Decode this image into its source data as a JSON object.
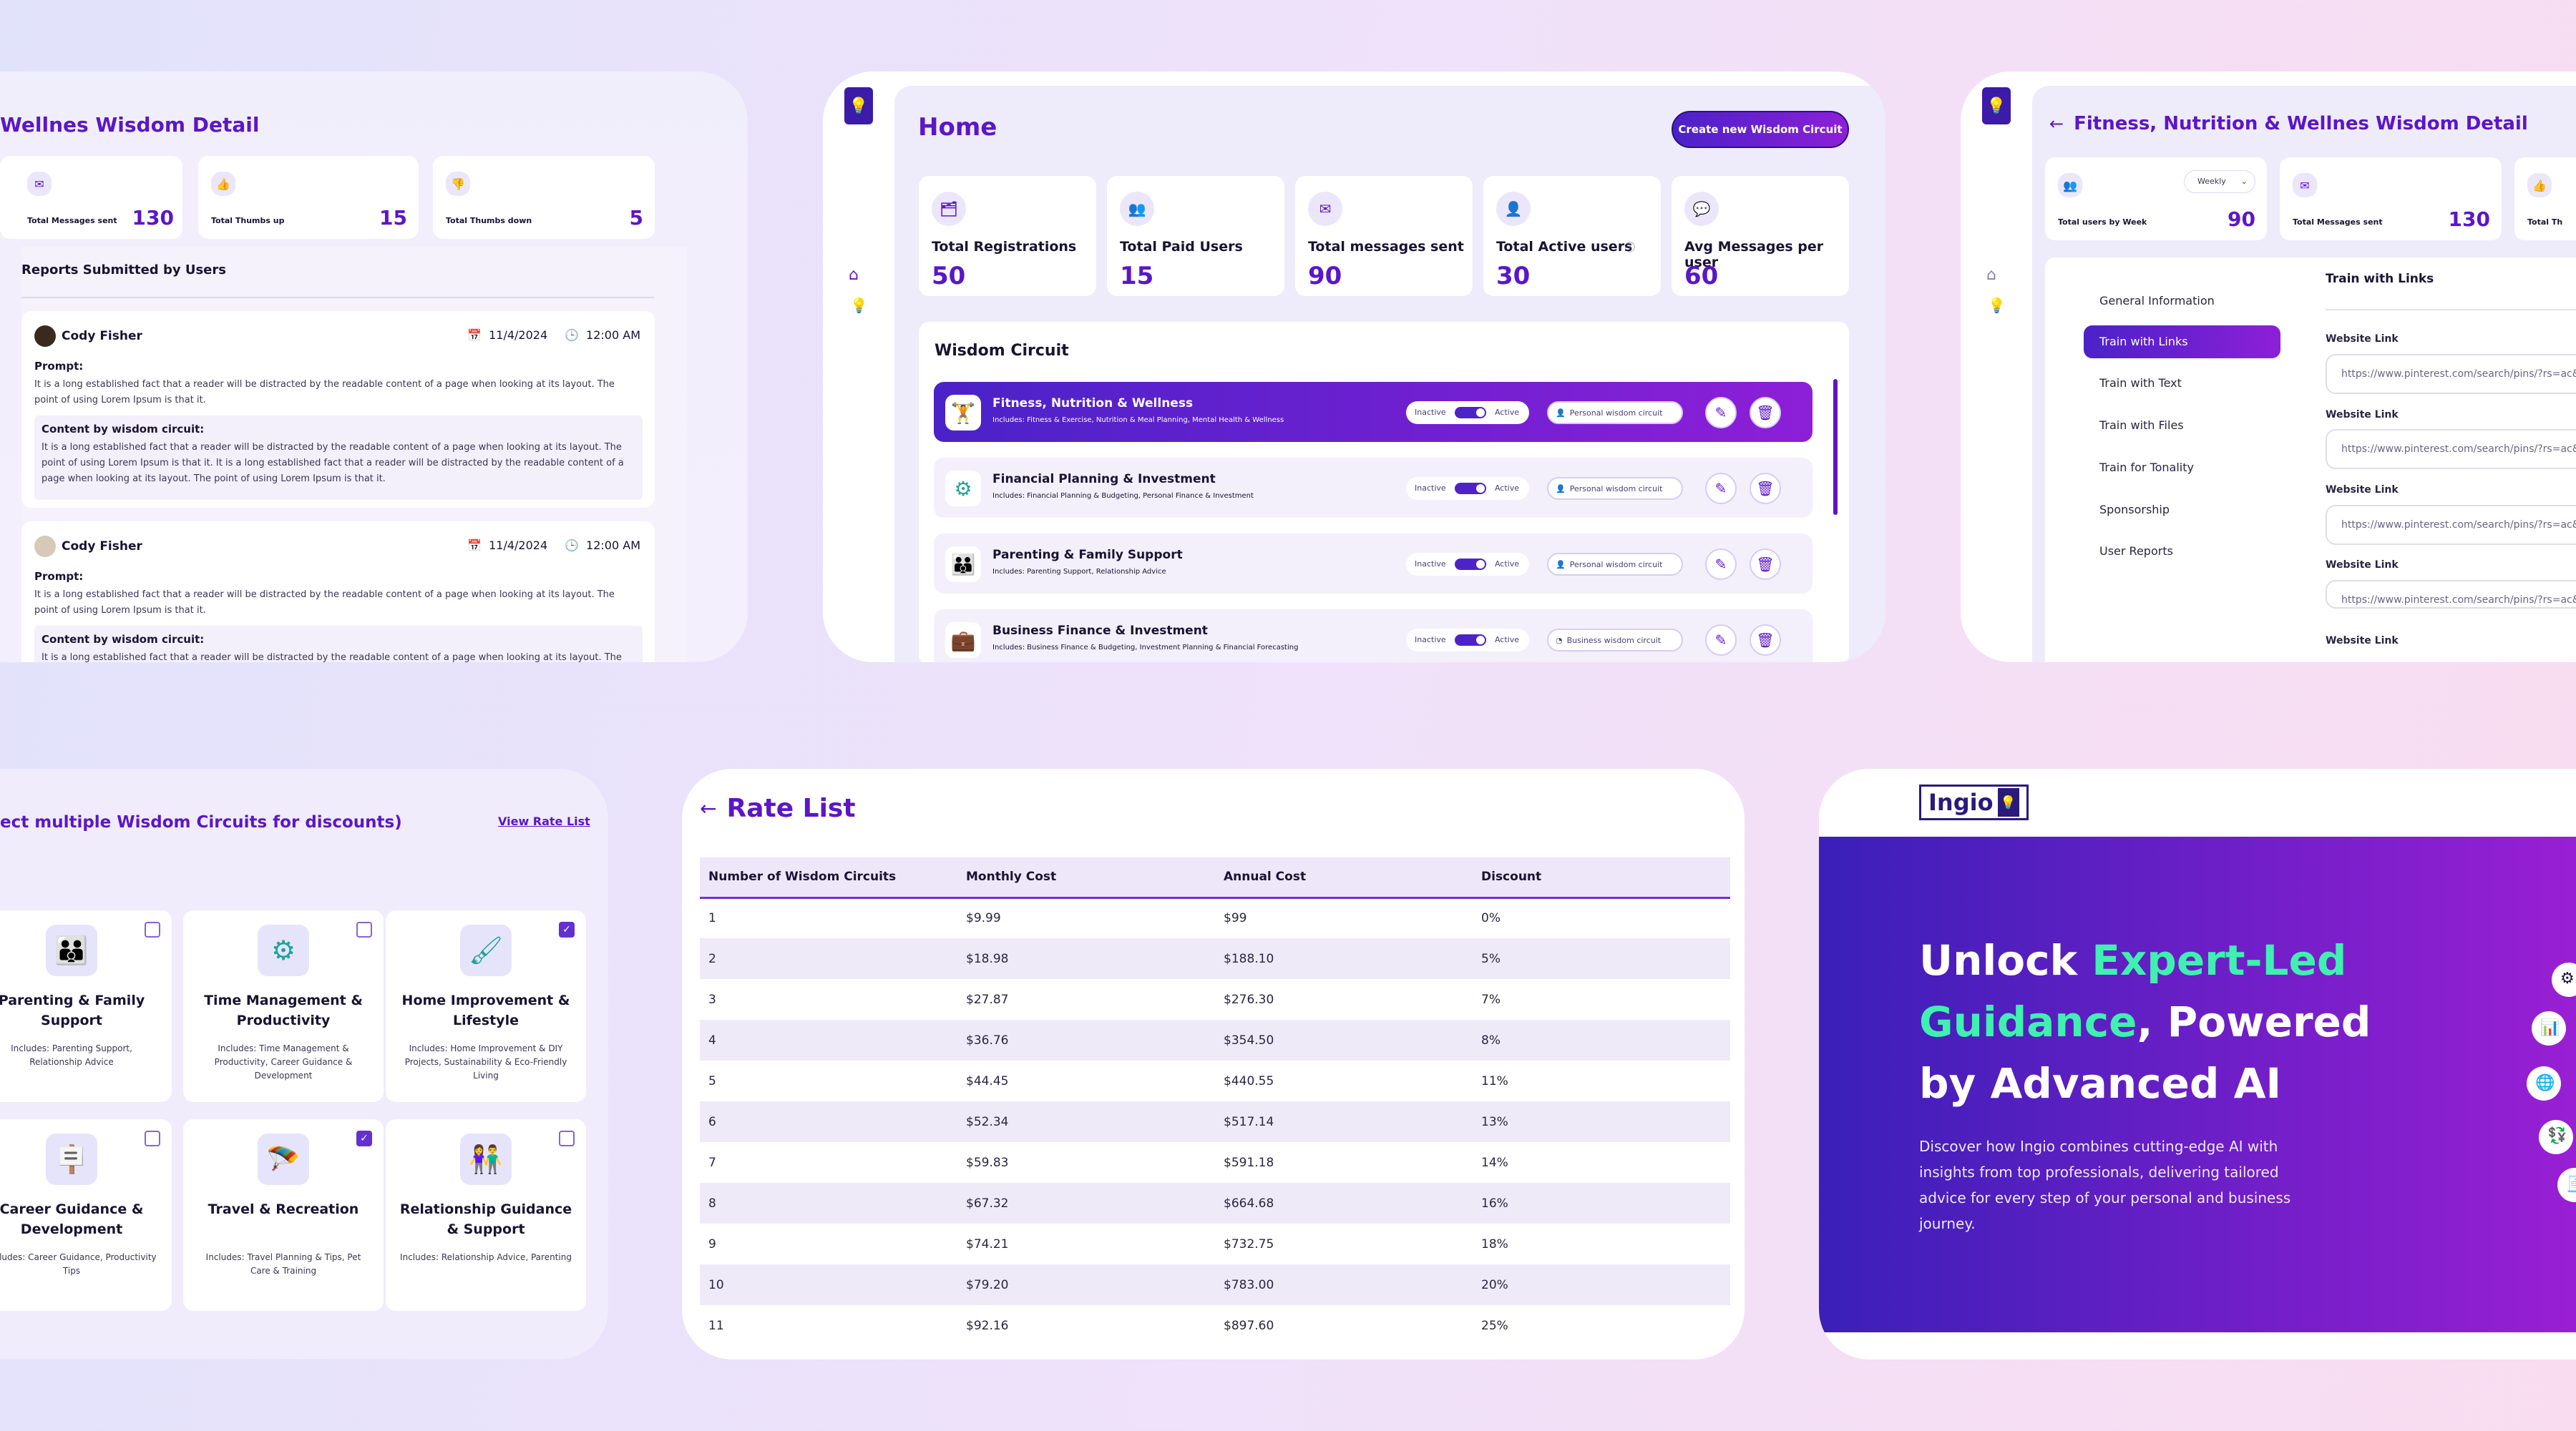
{
  "detail_left": {
    "title": "Wellnes Wisdom Detail",
    "stats": [
      {
        "label": "Total Messages sent",
        "value": "130"
      },
      {
        "label": "Total Thumbs up",
        "value": "15"
      },
      {
        "label": "Total Thumbs down",
        "value": "5"
      }
    ],
    "reports_title": "Reports Submitted by Users",
    "reports": [
      {
        "user": "Cody Fisher",
        "date": "11/4/2024",
        "time": "12:00 AM",
        "prompt_label": "Prompt:",
        "prompt": "It is a long established fact that a reader will be distracted by the readable content of a page when looking at its layout. The point of using Lorem Ipsum is that it.",
        "content_label": "Content by wisdom circuit:",
        "content": "It is a long established fact that a reader will be distracted by the readable content of a page when looking at its layout. The point of using Lorem Ipsum is that it. It is a long established fact that a reader will be distracted by the readable content of a page when looking at its layout. The point of using Lorem Ipsum is that it."
      },
      {
        "user": "Cody Fisher",
        "date": "11/4/2024",
        "time": "12:00 AM",
        "prompt_label": "Prompt:",
        "prompt": "It is a long established fact that a reader will be distracted by the readable content of a page when looking at its layout. The point of using Lorem Ipsum is that it.",
        "content_label": "Content by wisdom circuit:",
        "content": "It is a long established fact that a reader will be distracted by the readable content of a page when looking at its layout. The point"
      }
    ]
  },
  "home": {
    "title": "Home",
    "create_button": "Create new Wisdom Circuit",
    "stats": [
      {
        "label": "Total Registrations",
        "value": "50"
      },
      {
        "label": "Total Paid Users",
        "value": "15"
      },
      {
        "label": "Total messages sent",
        "value": "90"
      },
      {
        "label": "Total Active users",
        "value": "30"
      },
      {
        "label": "Avg Messages per user",
        "value": "60"
      }
    ],
    "section_title": "Wisdom Circuit",
    "toggle_inactive": "Inactive",
    "toggle_active": "Active",
    "circuits": [
      {
        "name": "Fitness, Nutrition & Wellness",
        "includes": "Includes: Fitness & Exercise, Nutrition & Meal Planning, Mental Health & Wellness",
        "badge": "Personal wisdom circuit"
      },
      {
        "name": "Financial Planning & Investment",
        "includes": "Includes: Financial Planning & Budgeting, Personal Finance & Investment",
        "badge": "Personal wisdom circuit"
      },
      {
        "name": "Parenting & Family Support",
        "includes": "Includes: Parenting Support, Relationship Advice",
        "badge": "Personal wisdom circuit"
      },
      {
        "name": "Business Finance & Investment",
        "includes": "Includes: Business Finance & Budgeting, Investment Planning & Financial Forecasting",
        "badge": "Business wisdom circuit"
      }
    ]
  },
  "detail_right": {
    "title": "Fitness, Nutrition & Wellnes Wisdom Detail",
    "stats": [
      {
        "label": "Total users by Week",
        "value": "90",
        "dropdown": "Weekly"
      },
      {
        "label": "Total Messages sent",
        "value": "130"
      },
      {
        "label": "Total Th",
        "value": ""
      }
    ],
    "menu": [
      "General Information",
      "Train with Links",
      "Train with Text",
      "Train with Files",
      "Train for Tonality",
      "Sponsorship",
      "User Reports"
    ],
    "panel_title": "Train with Links",
    "link_label": "Website Link",
    "link_value": "https://www.pinterest.com/search/pins/?rs=ac&le"
  },
  "selector": {
    "heading": "ect multiple Wisdom Circuits for discounts)",
    "view_link": "View Rate List",
    "cards": [
      {
        "name": "Parenting & Family Support",
        "includes": "Includes: Parenting Support, Relationship Advice",
        "checked": false
      },
      {
        "name": "Time Management & Productivity",
        "includes": "Includes: Time Management & Productivity, Career Guidance & Development",
        "checked": false
      },
      {
        "name": "Home Improvement & Lifestyle",
        "includes": "Includes: Home Improvement & DIY Projects, Sustainability & Eco-Friendly Living",
        "checked": true
      },
      {
        "name": "Career Guidance & Development",
        "includes": "Includes: Career Guidance, Productivity Tips",
        "checked": false
      },
      {
        "name": "Travel & Recreation",
        "includes": "Includes: Travel Planning & Tips, Pet Care & Training",
        "checked": true
      },
      {
        "name": "Relationship Guidance & Support",
        "includes": "Includes: Relationship Advice, Parenting",
        "checked": false
      }
    ]
  },
  "rate_list": {
    "title": "Rate List",
    "headers": [
      "Number of Wisdom Circuits",
      "Monthly Cost",
      "Annual Cost",
      "Discount"
    ],
    "rows": [
      [
        "1",
        "$9.99",
        "$99",
        "0%"
      ],
      [
        "2",
        "$18.98",
        "$188.10",
        "5%"
      ],
      [
        "3",
        "$27.87",
        "$276.30",
        "7%"
      ],
      [
        "4",
        "$36.76",
        "$354.50",
        "8%"
      ],
      [
        "5",
        "$44.45",
        "$440.55",
        "11%"
      ],
      [
        "6",
        "$52.34",
        "$517.14",
        "13%"
      ],
      [
        "7",
        "$59.83",
        "$591.18",
        "14%"
      ],
      [
        "8",
        "$67.32",
        "$664.68",
        "16%"
      ],
      [
        "9",
        "$74.21",
        "$732.75",
        "18%"
      ],
      [
        "10",
        "$79.20",
        "$783.00",
        "20%"
      ],
      [
        "11",
        "$92.16",
        "$897.60",
        "25%"
      ]
    ]
  },
  "landing": {
    "logo": "Ingio",
    "headline_1": "Unlock ",
    "headline_accent_1": "Expert-Led",
    "headline_accent_2": "Guidance",
    "headline_2": ", Powered",
    "headline_3": "by Advanced AI",
    "body": "Discover how Ingio combines cutting-edge AI with insights from top professionals, delivering tailored advice for every step of your personal and business journey.",
    "colors": {
      "accent": "#3ff0b0",
      "bg_start": "#3a1fb8",
      "bg_end": "#a21fd6"
    }
  }
}
